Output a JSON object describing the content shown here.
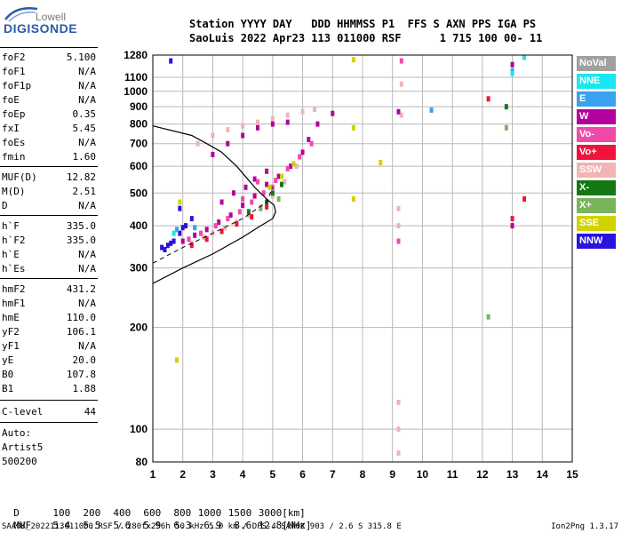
{
  "logo": {
    "company": "Lowell",
    "product": "DIGISONDE"
  },
  "header": {
    "line1": "Station YYYY DAY   DDD HHMMSS P1  FFS S AXN PPS IGA PS",
    "line2": "SaoLuis 2022 Apr23 113 011000 RSF      1 715 100 00- 11"
  },
  "params_group1": [
    {
      "name": "foF2",
      "value": "5.100"
    },
    {
      "name": "foF1",
      "value": "N/A"
    },
    {
      "name": "foF1p",
      "value": "N/A"
    },
    {
      "name": "foE",
      "value": "N/A"
    },
    {
      "name": "foEp",
      "value": "0.35"
    },
    {
      "name": "fxI",
      "value": "5.45"
    },
    {
      "name": "foEs",
      "value": "N/A"
    },
    {
      "name": "fmin",
      "value": "1.60"
    }
  ],
  "params_group2": [
    {
      "name": "MUF(D)",
      "value": "12.82"
    },
    {
      "name": "M(D)",
      "value": "2.51"
    },
    {
      "name": "D",
      "value": "N/A"
    }
  ],
  "params_group3": [
    {
      "name": "h`F",
      "value": "335.0"
    },
    {
      "name": "h`F2",
      "value": "335.0"
    },
    {
      "name": "h`E",
      "value": "N/A"
    },
    {
      "name": "h`Es",
      "value": "N/A"
    }
  ],
  "params_group4": [
    {
      "name": "hmF2",
      "value": "431.2"
    },
    {
      "name": "hmF1",
      "value": "N/A"
    },
    {
      "name": "hmE",
      "value": "110.0"
    },
    {
      "name": "yF2",
      "value": "106.1"
    },
    {
      "name": "yF1",
      "value": "N/A"
    },
    {
      "name": "yE",
      "value": "20.0"
    },
    {
      "name": "B0",
      "value": "107.8"
    },
    {
      "name": "B1",
      "value": "1.88"
    }
  ],
  "clevel": {
    "name": "C-level",
    "value": "44"
  },
  "scaling": {
    "line1": "Auto:",
    "line2": "Artist5",
    "line3": "500200"
  },
  "legend": [
    {
      "label": "NoVal",
      "color": "#a0a0a0"
    },
    {
      "label": "NNE",
      "color": "#19e6f0"
    },
    {
      "label": "E",
      "color": "#3aa0f0"
    },
    {
      "label": "W",
      "color": "#b4009c"
    },
    {
      "label": "Vo-",
      "color": "#f04aa8"
    },
    {
      "label": "Vo+",
      "color": "#f0143c"
    },
    {
      "label": "SSW",
      "color": "#f2b4b4"
    },
    {
      "label": "X-",
      "color": "#147814"
    },
    {
      "label": "X+",
      "color": "#78b45a"
    },
    {
      "label": "SSE",
      "color": "#d2d200"
    },
    {
      "label": "NNW",
      "color": "#2814dc"
    }
  ],
  "muf_table": {
    "d_label": "D",
    "d_values": [
      "100",
      "200",
      "400",
      "600",
      "800",
      "1000",
      "1500",
      "3000"
    ],
    "d_unit": "[km]",
    "muf_label": "MUF",
    "muf_values": [
      "5.4",
      "5.5",
      "5.6",
      "5.9",
      "6.3",
      "6.9",
      "8.6",
      "12.8"
    ],
    "muf_unit": "[MHz]"
  },
  "footer": {
    "left": "SAA0K_2022113011000.RSF / 280fx256h 50 kHz 5.0 km / DPS-4 SAA0K 903 / 2.6 S 315.8 E",
    "right": "Ion2Png 1.3.17"
  },
  "chart_data": {
    "type": "scatter",
    "title": "",
    "xlabel": "",
    "ylabel": "",
    "xlim": [
      1,
      15
    ],
    "ylim": [
      80,
      1280
    ],
    "y_scale": "log",
    "grid": true,
    "x_ticks": [
      "1",
      "2",
      "3",
      "4",
      "5",
      "6",
      "7",
      "8",
      "9",
      "10",
      "11",
      "12",
      "13",
      "14",
      "15"
    ],
    "y_ticks": [
      "80",
      "100",
      "200",
      "300",
      "400",
      "500",
      "600",
      "700",
      "800",
      "900",
      "1000",
      "1100",
      "1280"
    ],
    "series": [
      {
        "name": "SSW",
        "color": "#f2b4b4",
        "points": [
          [
            2.3,
            355
          ],
          [
            2.7,
            370
          ],
          [
            3.0,
            380
          ],
          [
            3.4,
            395
          ],
          [
            3.8,
            410
          ],
          [
            4.2,
            430
          ],
          [
            4.6,
            455
          ],
          [
            5.0,
            490
          ],
          [
            5.4,
            540
          ],
          [
            5.8,
            600
          ],
          [
            2.5,
            700
          ],
          [
            3.0,
            740
          ],
          [
            3.5,
            770
          ],
          [
            4.0,
            790
          ],
          [
            4.5,
            810
          ],
          [
            5.0,
            830
          ],
          [
            5.5,
            850
          ],
          [
            6.0,
            870
          ],
          [
            6.4,
            885
          ],
          [
            9.2,
            400
          ],
          [
            9.2,
            450
          ],
          [
            9.3,
            1050
          ],
          [
            9.3,
            850
          ],
          [
            9.2,
            120
          ],
          [
            9.2,
            100
          ],
          [
            9.2,
            85
          ]
        ]
      },
      {
        "name": "W",
        "color": "#b4009c",
        "points": [
          [
            2.0,
            360
          ],
          [
            2.4,
            375
          ],
          [
            2.8,
            390
          ],
          [
            3.2,
            410
          ],
          [
            3.6,
            430
          ],
          [
            4.0,
            460
          ],
          [
            4.4,
            490
          ],
          [
            4.8,
            530
          ],
          [
            5.2,
            560
          ],
          [
            5.6,
            600
          ],
          [
            6.0,
            660
          ],
          [
            6.2,
            720
          ],
          [
            6.5,
            800
          ],
          [
            7.0,
            860
          ],
          [
            3.3,
            470
          ],
          [
            3.7,
            500
          ],
          [
            4.1,
            520
          ],
          [
            4.4,
            550
          ],
          [
            4.8,
            580
          ],
          [
            3.0,
            650
          ],
          [
            3.5,
            700
          ],
          [
            4.0,
            740
          ],
          [
            4.5,
            780
          ],
          [
            5.0,
            800
          ],
          [
            5.5,
            810
          ],
          [
            13.0,
            400
          ],
          [
            13.0,
            1200
          ],
          [
            9.2,
            870
          ]
        ]
      },
      {
        "name": "Vo-",
        "color": "#f04aa8",
        "points": [
          [
            2.2,
            365
          ],
          [
            2.6,
            380
          ],
          [
            3.1,
            400
          ],
          [
            3.5,
            420
          ],
          [
            3.9,
            440
          ],
          [
            4.3,
            470
          ],
          [
            4.7,
            500
          ],
          [
            5.1,
            545
          ],
          [
            5.5,
            590
          ],
          [
            5.9,
            640
          ],
          [
            6.3,
            700
          ],
          [
            4.5,
            540
          ],
          [
            5.0,
            520
          ],
          [
            4.0,
            480
          ],
          [
            9.2,
            360
          ],
          [
            9.3,
            1230
          ]
        ]
      },
      {
        "name": "Vo+",
        "color": "#f0143c",
        "points": [
          [
            2.3,
            350
          ],
          [
            2.8,
            365
          ],
          [
            3.3,
            385
          ],
          [
            3.8,
            405
          ],
          [
            4.3,
            425
          ],
          [
            4.8,
            455
          ],
          [
            12.2,
            950
          ],
          [
            13.0,
            420
          ],
          [
            13.4,
            480
          ]
        ]
      },
      {
        "name": "NNW",
        "color": "#2814dc",
        "points": [
          [
            1.3,
            345
          ],
          [
            1.5,
            350
          ],
          [
            1.7,
            360
          ],
          [
            1.9,
            380
          ],
          [
            2.1,
            400
          ],
          [
            2.3,
            420
          ],
          [
            1.4,
            340
          ],
          [
            1.6,
            355
          ],
          [
            2.0,
            395
          ],
          [
            1.9,
            450
          ],
          [
            1.6,
            1230
          ]
        ]
      },
      {
        "name": "X-",
        "color": "#147814",
        "points": [
          [
            4.2,
            440
          ],
          [
            4.8,
            470
          ],
          [
            5.0,
            500
          ],
          [
            5.3,
            530
          ],
          [
            12.8,
            900
          ]
        ]
      },
      {
        "name": "SSE",
        "color": "#d2d200",
        "points": [
          [
            1.9,
            470
          ],
          [
            4.9,
            520
          ],
          [
            5.3,
            560
          ],
          [
            5.7,
            610
          ],
          [
            7.7,
            1240
          ],
          [
            7.7,
            780
          ],
          [
            7.7,
            480
          ],
          [
            8.6,
            615
          ],
          [
            1.8,
            160
          ]
        ]
      },
      {
        "name": "E",
        "color": "#3aa0f0",
        "points": [
          [
            1.8,
            390
          ],
          [
            2.4,
            395
          ],
          [
            10.3,
            880
          ],
          [
            13.0,
            1150
          ]
        ]
      },
      {
        "name": "NNE",
        "color": "#19e6f0",
        "points": [
          [
            1.7,
            380
          ],
          [
            13.0,
            1130
          ],
          [
            13.4,
            1260
          ]
        ]
      },
      {
        "name": "X+",
        "color": "#78b45a",
        "points": [
          [
            4.6,
            450
          ],
          [
            5.2,
            480
          ],
          [
            12.8,
            780
          ],
          [
            12.2,
            215
          ]
        ]
      }
    ],
    "profile_line": [
      [
        1.0,
        270
      ],
      [
        2.0,
        300
      ],
      [
        3.0,
        330
      ],
      [
        4.0,
        370
      ],
      [
        4.6,
        400
      ],
      [
        5.0,
        420
      ],
      [
        5.1,
        440
      ],
      [
        5.05,
        460
      ],
      [
        4.8,
        480
      ],
      [
        4.4,
        520
      ],
      [
        3.8,
        600
      ],
      [
        3.3,
        660
      ],
      [
        2.8,
        700
      ],
      [
        2.3,
        740
      ],
      [
        1.0,
        790
      ]
    ],
    "trace_line": [
      [
        1.0,
        310
      ],
      [
        2.0,
        345
      ],
      [
        3.0,
        380
      ],
      [
        4.0,
        420
      ],
      [
        4.8,
        470
      ],
      [
        5.0,
        520
      ]
    ]
  }
}
